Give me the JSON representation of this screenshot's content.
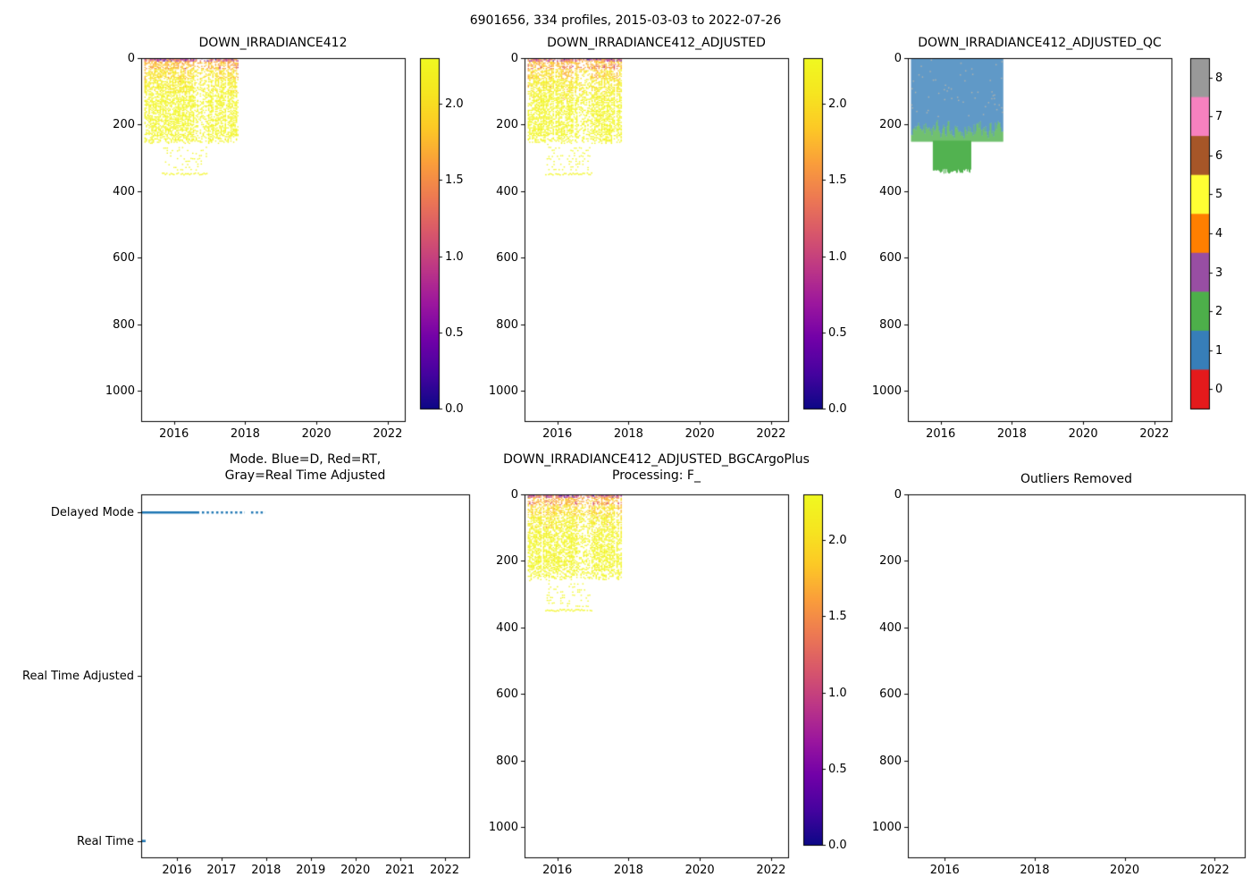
{
  "figure": {
    "title": "6901656, 334 profiles, 2015-03-03 to 2022-07-26",
    "background": "#ffffff",
    "text_color": "#000000"
  },
  "chart_data": [
    {
      "id": "down_irradiance412",
      "type": "scatter",
      "title": "DOWN_IRRADIANCE412",
      "x_ticks": [
        "2016",
        "2018",
        "2020",
        "2022"
      ],
      "x_tick_values": [
        2016,
        2018,
        2020,
        2022
      ],
      "y_ticks": [
        "0",
        "200",
        "400",
        "600",
        "800",
        "1000"
      ],
      "y_tick_values": [
        0,
        200,
        400,
        600,
        800,
        1000
      ],
      "xlim": [
        2015.08,
        2022.48
      ],
      "ylim": [
        1090,
        0
      ],
      "grid": false,
      "colorbar": {
        "colormap": "plasma_r",
        "vmin": 0.0,
        "vmax": 2.3,
        "tick_labels": [
          "2.0",
          "1.5",
          "1.0",
          "0.5",
          "0.0"
        ],
        "tick_values": [
          2.0,
          1.5,
          1.0,
          0.5,
          0.0
        ]
      },
      "data_summary": {
        "dense_block": {
          "time": [
            2015.17,
            2017.78
          ],
          "depth": [
            0,
            255
          ],
          "values": "mostly 0-0.15 (yellow) below ~60 dbar; 0.3-2.3 (orange, red, purple, navy) in upper 60 dbar"
        },
        "sparse_deep_block": {
          "time": [
            2015.7,
            2016.9
          ],
          "depth": [
            265,
            352
          ],
          "values": "0-0.1, scattered dots in broken rows, denser band near 345 dbar"
        }
      }
    },
    {
      "id": "down_irradiance412_adjusted",
      "type": "scatter",
      "title": "DOWN_IRRADIANCE412_ADJUSTED",
      "x_ticks": [
        "2016",
        "2018",
        "2020",
        "2022"
      ],
      "x_tick_values": [
        2016,
        2018,
        2020,
        2022
      ],
      "y_ticks": [
        "0",
        "200",
        "400",
        "600",
        "800",
        "1000"
      ],
      "y_tick_values": [
        0,
        200,
        400,
        600,
        800,
        1000
      ],
      "xlim": [
        2015.08,
        2022.48
      ],
      "ylim": [
        1090,
        0
      ],
      "grid": false,
      "colorbar": {
        "colormap": "plasma_r",
        "vmin": 0.0,
        "vmax": 2.3,
        "tick_labels": [
          "2.0",
          "1.5",
          "1.0",
          "0.5",
          "0.0"
        ],
        "tick_values": [
          2.0,
          1.5,
          1.0,
          0.5,
          0.0
        ]
      },
      "data_summary": {
        "dense_block": {
          "time": [
            2015.17,
            2017.78
          ],
          "depth": [
            0,
            255
          ],
          "values": "same pattern as DOWN_IRRADIANCE412"
        },
        "sparse_deep_block": {
          "time": [
            2015.7,
            2016.9
          ],
          "depth": [
            265,
            352
          ],
          "values": "0-0.1 sparse dots"
        }
      }
    },
    {
      "id": "down_irradiance412_adjusted_qc",
      "type": "scatter",
      "title": "DOWN_IRRADIANCE412_ADJUSTED_QC",
      "x_ticks": [
        "2016",
        "2018",
        "2020",
        "2022"
      ],
      "x_tick_values": [
        2016,
        2018,
        2020,
        2022
      ],
      "y_ticks": [
        "0",
        "200",
        "400",
        "600",
        "800",
        "1000"
      ],
      "y_tick_values": [
        0,
        200,
        400,
        600,
        800,
        1000
      ],
      "xlim": [
        2015.08,
        2022.48
      ],
      "ylim": [
        1090,
        0
      ],
      "grid": false,
      "colorbar": {
        "colormap": "Set1 discrete QC flags",
        "tick_labels": [
          "8",
          "7",
          "6",
          "5",
          "4",
          "3",
          "2",
          "1",
          "0"
        ],
        "tick_values": [
          8,
          7,
          6,
          5,
          4,
          3,
          2,
          1,
          0
        ],
        "flag_colors": {
          "0": "#e41a1c",
          "1": "#377eb8",
          "2": "#4daf4a",
          "3": "#984ea3",
          "4": "#ff7f00",
          "5": "#ffff33",
          "6": "#a65628",
          "7": "#f781bf",
          "8": "#999999"
        }
      },
      "data_summary": {
        "qc1_block": {
          "flag": 1,
          "color": "#377eb8",
          "time": [
            2015.17,
            2017.73
          ],
          "depth": "0 down to ragged boundary at 175-245 dbar"
        },
        "qc2_band": {
          "flag": 2,
          "color": "#4daf4a",
          "time": [
            2015.17,
            2017.73
          ],
          "depth": "ragged boundary down to ~250 dbar"
        },
        "qc2_deep_block": {
          "flag": 2,
          "color": "#4daf4a",
          "time": [
            2015.78,
            2016.85
          ],
          "depth": [
            250,
            348
          ]
        },
        "speckles": {
          "color": "#999999",
          "note": "sparse small gray dots inside blue block"
        }
      }
    },
    {
      "id": "mode",
      "type": "line",
      "title_lines": [
        "Mode. Blue=D, Red=RT,",
        "Gray=Real Time Adjusted"
      ],
      "categories": [
        "Delayed Mode",
        "Real Time Adjusted",
        "Real Time"
      ],
      "x_ticks": [
        "2016",
        "2017",
        "2018",
        "2019",
        "2020",
        "2021",
        "2022"
      ],
      "x_tick_values": [
        2016,
        2017,
        2018,
        2019,
        2020,
        2021,
        2022
      ],
      "xlim": [
        2015.2,
        2022.55
      ],
      "grid": false,
      "line_color": "#1f77b4",
      "series": [
        {
          "category": "Delayed Mode",
          "color": "#1f77b4",
          "time": [
            2015.17,
            2017.8
          ],
          "style": "solid line until ~2016.5, then broken dashes until ~2017.8"
        },
        {
          "category": "Real Time",
          "color": "#1f77b4",
          "time": [
            2015.17,
            2015.27
          ],
          "style": "single short mark at left axis"
        }
      ]
    },
    {
      "id": "down_irradiance412_adjusted_bgcargoplus",
      "type": "scatter",
      "title_lines": [
        "DOWN_IRRADIANCE412_ADJUSTED_BGCArgoPlus",
        "Processing: F_"
      ],
      "x_ticks": [
        "2016",
        "2018",
        "2020",
        "2022"
      ],
      "x_tick_values": [
        2016,
        2018,
        2020,
        2022
      ],
      "y_ticks": [
        "0",
        "200",
        "400",
        "600",
        "800",
        "1000"
      ],
      "y_tick_values": [
        0,
        200,
        400,
        600,
        800,
        1000
      ],
      "xlim": [
        2015.08,
        2022.48
      ],
      "ylim": [
        1090,
        0
      ],
      "grid": false,
      "colorbar": {
        "colormap": "plasma_r",
        "vmin": 0.0,
        "vmax": 2.3,
        "tick_labels": [
          "2.0",
          "1.5",
          "1.0",
          "0.5",
          "0.0"
        ],
        "tick_values": [
          2.0,
          1.5,
          1.0,
          0.5,
          0.0
        ]
      },
      "data_summary": {
        "dense_block": {
          "time": [
            2015.17,
            2017.78
          ],
          "depth": [
            0,
            255
          ],
          "values": "same pattern as DOWN_IRRADIANCE412"
        },
        "sparse_deep_block": {
          "time": [
            2015.7,
            2016.9
          ],
          "depth": [
            265,
            352
          ],
          "values": "0-0.1 sparse dots"
        }
      }
    },
    {
      "id": "outliers_removed",
      "type": "scatter",
      "title": "Outliers Removed",
      "x_ticks": [
        "2016",
        "2018",
        "2020",
        "2022"
      ],
      "x_tick_values": [
        2016,
        2018,
        2020,
        2022
      ],
      "y_ticks": [
        "0",
        "200",
        "400",
        "600",
        "800",
        "1000"
      ],
      "y_tick_values": [
        0,
        200,
        400,
        600,
        800,
        1000
      ],
      "xlim": [
        2015.18,
        2022.67
      ],
      "ylim": [
        1090,
        0
      ],
      "grid": false,
      "data_summary": {
        "points": "none (empty axes)"
      }
    }
  ]
}
